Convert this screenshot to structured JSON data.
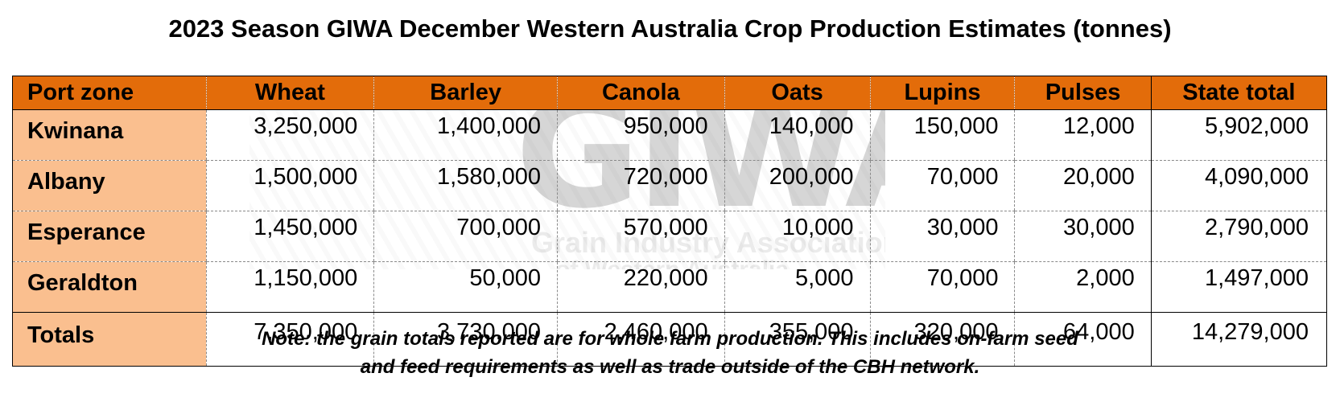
{
  "title": "2023 Season GIWA December Western Australia Crop Production Estimates (tonnes)",
  "watermark": {
    "logo_text": "GIWA",
    "line1": "Grain Industry Association",
    "line2": "of Western Australia"
  },
  "table": {
    "headers": [
      "Port zone",
      "Wheat",
      "Barley",
      "Canola",
      "Oats",
      "Lupins",
      "Pulses",
      "State total"
    ],
    "rows": [
      {
        "zone": "Kwinana",
        "values": [
          "3,250,000",
          "1,400,000",
          "950,000",
          "140,000",
          "150,000",
          "12,000",
          "5,902,000"
        ]
      },
      {
        "zone": "Albany",
        "values": [
          "1,500,000",
          "1,580,000",
          "720,000",
          "200,000",
          "70,000",
          "20,000",
          "4,090,000"
        ]
      },
      {
        "zone": "Esperance",
        "values": [
          "1,450,000",
          "700,000",
          "570,000",
          "10,000",
          "30,000",
          "30,000",
          "2,790,000"
        ]
      },
      {
        "zone": "Geraldton",
        "values": [
          "1,150,000",
          "50,000",
          "220,000",
          "5,000",
          "70,000",
          "2,000",
          "1,497,000"
        ]
      }
    ],
    "totals": {
      "label": "Totals",
      "values": [
        "7,350,000",
        "3,730,000",
        "2,460,000",
        "355,000",
        "320,000",
        "64,000",
        "14,279,000"
      ]
    }
  },
  "note": {
    "line1": "Note: the grain totals reported are for whole farm production. This includes on-farm seed",
    "line2": "and feed requirements as well as trade outside of the CBH network."
  },
  "colors": {
    "header_bg": "#e36c0a",
    "row_label_bg": "#fabf8f"
  }
}
